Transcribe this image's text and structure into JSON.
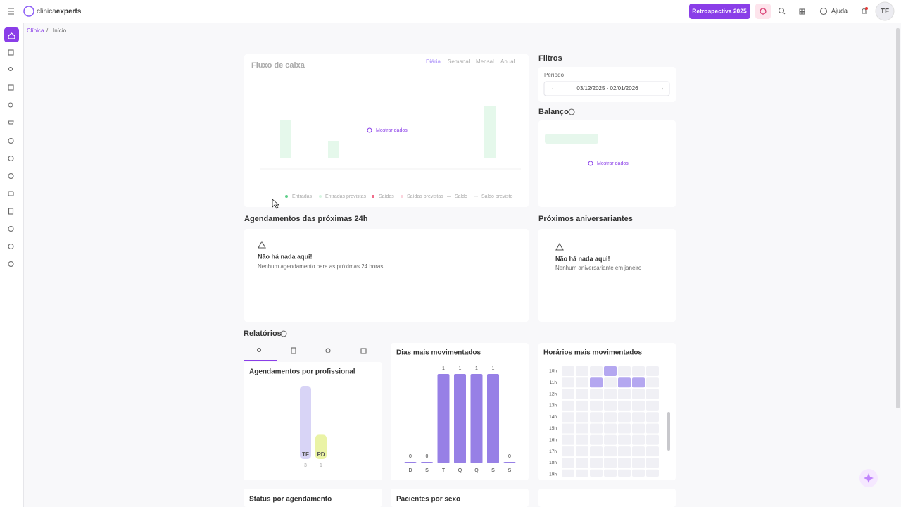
{
  "header": {
    "brand": [
      "clinica",
      "experts"
    ],
    "retro": "Retrospectiva 2025",
    "help": "Ajuda",
    "avatar": "TF"
  },
  "breadcrumb": [
    "Clínica",
    "Início"
  ],
  "cashflow": {
    "title": "Fluxo de caixa",
    "tabs": [
      "Diária",
      "Semanal",
      "Mensal",
      "Anual"
    ],
    "show": "Mostrar dados",
    "legend": [
      "Entradas",
      "Entradas previstas",
      "Saídas",
      "Saídas previstas",
      "Saldo",
      "Saldo previsto"
    ]
  },
  "filters": {
    "title": "Filtros",
    "period_label": "Período",
    "period": "03/12/2025 - 02/01/2026"
  },
  "balance": {
    "title": "Balanço",
    "show": "Mostrar dados"
  },
  "appointments": {
    "title": "Agendamentos das próximas 24h",
    "empty": "Não há nada aqui!",
    "message": "Nenhum agendamento para as próximas 24 horas"
  },
  "birthdays": {
    "title": "Próximos aniversariantes",
    "empty": "Não há nada aqui!",
    "message": "Nenhum aniversariante em janeiro"
  },
  "reports": {
    "title": "Relatórios",
    "bottom": [
      "Status por agendamento",
      "Pacientes por sexo"
    ]
  },
  "chart_data": [
    {
      "type": "bar",
      "title": "Agendamentos por profissional",
      "categories": [
        "TF",
        "PD"
      ],
      "values": [
        3,
        1
      ],
      "colors": [
        "#d8d4f6",
        "#eaf3a6"
      ]
    },
    {
      "type": "column",
      "title": "Dias mais movimentados",
      "categories": [
        "D",
        "S",
        "T",
        "Q",
        "Q",
        "S",
        "S"
      ],
      "values": [
        0,
        0,
        1,
        1,
        1,
        1,
        0
      ],
      "color": "#9780e6"
    },
    {
      "type": "heatmap",
      "title": "Horários mais movimentados",
      "categories": [
        null,
        null,
        null,
        null,
        null,
        null,
        null
      ],
      "rows": [
        "10h",
        "11h",
        "12h",
        "13h",
        "14h",
        "15h",
        "16h",
        "17h",
        "18h",
        "19h"
      ],
      "values": [
        [
          0,
          0,
          0,
          1,
          0,
          0,
          0
        ],
        [
          0,
          0,
          1,
          0,
          1,
          1,
          0
        ],
        [
          0,
          0,
          0,
          0,
          0,
          0,
          0
        ],
        [
          0,
          0,
          0,
          0,
          0,
          0,
          0
        ],
        [
          0,
          0,
          0,
          0,
          0,
          0,
          0
        ],
        [
          0,
          0,
          0,
          0,
          0,
          0,
          0
        ],
        [
          0,
          0,
          0,
          0,
          0,
          0,
          0
        ],
        [
          0,
          0,
          0,
          0,
          0,
          0,
          0
        ],
        [
          0,
          0,
          0,
          0,
          0,
          0,
          0
        ],
        [
          0,
          0,
          0,
          0,
          0,
          0,
          0
        ]
      ],
      "color": "#b4a7f0"
    }
  ]
}
